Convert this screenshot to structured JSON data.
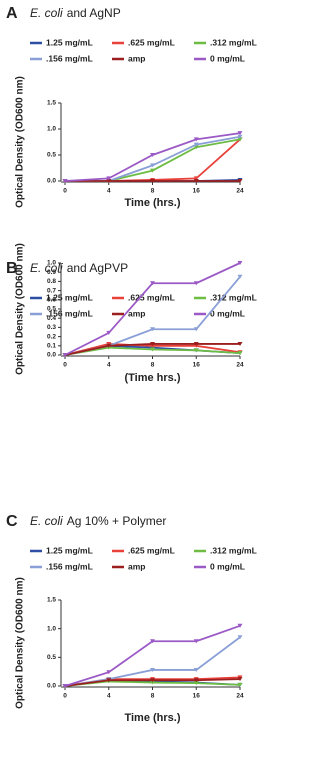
{
  "chart_data": [
    {
      "type": "line",
      "panel": "A",
      "organism": "E. coli",
      "title": "and AgNP",
      "xlabel": "Time (hrs.)",
      "ylabel": "Optical Density (OD600 nm)",
      "categories": [
        0,
        4,
        8,
        16,
        24
      ],
      "ylim": [
        0,
        1.5
      ],
      "yticks": [
        {
          "value": 0,
          "label": "0.0"
        },
        {
          "value": 0.5,
          "label": "0.5"
        },
        {
          "value": 1,
          "label": "1.0"
        },
        {
          "value": 1.5,
          "label": "1.5"
        }
      ],
      "series": [
        {
          "name": "1.25 mg/mL",
          "color": "#2e4fa3",
          "values": [
            0,
            0,
            0,
            0,
            0.02
          ]
        },
        {
          "name": ".625 mg/mL",
          "color": "#e8413a",
          "values": [
            0,
            0,
            0.02,
            0.05,
            0.8
          ]
        },
        {
          "name": ".312 mg/mL",
          "color": "#6dbd45",
          "values": [
            0,
            0,
            0.2,
            0.65,
            0.8
          ]
        },
        {
          "name": ".156 mg/mL",
          "color": "#8a9fd6",
          "values": [
            0,
            0,
            0.3,
            0.7,
            0.85
          ]
        },
        {
          "name": "amp",
          "color": "#9b1f1f",
          "values": [
            0,
            0,
            0,
            0,
            0
          ]
        },
        {
          "name": "0 mg/mL",
          "color": "#9b59c6",
          "values": [
            0,
            0.05,
            0.5,
            0.8,
            0.92
          ]
        }
      ]
    },
    {
      "type": "line",
      "panel": "B",
      "organism": "E. coli",
      "title": "and AgPVP",
      "xlabel": "(Time hrs.)",
      "ylabel": "Optical Density (OD600 nm)",
      "categories": [
        0,
        4,
        8,
        16,
        24
      ],
      "ylim": [
        0,
        1
      ],
      "yticks": [
        {
          "value": 0,
          "label": "0.0"
        },
        0.1,
        0.2,
        0.3,
        0.4,
        0.5,
        0.6,
        0.7,
        0.8,
        0.9,
        {
          "value": 1,
          "label": "1.0"
        }
      ],
      "series": [
        {
          "name": "1.25 mg/mL",
          "color": "#2e4fa3",
          "values": [
            0,
            0.1,
            0.08,
            0.05,
            0.02
          ]
        },
        {
          "name": ".625 mg/mL",
          "color": "#e8413a",
          "values": [
            0,
            0.12,
            0.1,
            0.1,
            0.03
          ]
        },
        {
          "name": ".312 mg/mL",
          "color": "#6dbd45",
          "values": [
            0,
            0.08,
            0.06,
            0.05,
            0.02
          ]
        },
        {
          "name": ".156 mg/mL",
          "color": "#8a9fd6",
          "values": [
            0,
            0.1,
            0.28,
            0.28,
            0.85
          ]
        },
        {
          "name": "amp",
          "color": "#9b1f1f",
          "values": [
            0,
            0.1,
            0.12,
            0.12,
            0.12
          ]
        },
        {
          "name": "0 mg/mL",
          "color": "#9b59c6",
          "values": [
            0,
            0.24,
            0.78,
            0.78,
            1
          ]
        }
      ]
    },
    {
      "type": "line",
      "panel": "C",
      "organism": "E. coli",
      "title": "Ag 10% + Polymer",
      "xlabel": "Time (hrs.)",
      "ylabel": "Optical Density (OD600 nm)",
      "categories": [
        0,
        4,
        8,
        16,
        24
      ],
      "ylim": [
        0,
        1.5
      ],
      "yticks": [
        {
          "value": 0,
          "label": "0.0"
        },
        {
          "value": 0.5,
          "label": "0.5"
        },
        {
          "value": 1,
          "label": "1.0"
        },
        {
          "value": 1.5,
          "label": "1.5"
        }
      ],
      "series": [
        {
          "name": "1.25 mg/mL",
          "color": "#2e4fa3",
          "values": [
            0,
            0.1,
            0.08,
            0.06,
            0.02
          ]
        },
        {
          "name": ".625 mg/mL",
          "color": "#e8413a",
          "values": [
            0,
            0.12,
            0.12,
            0.12,
            0.15
          ]
        },
        {
          "name": ".312 mg/mL",
          "color": "#6dbd45",
          "values": [
            0,
            0.08,
            0.06,
            0.05,
            0.02
          ]
        },
        {
          "name": ".156 mg/mL",
          "color": "#8a9fd6",
          "values": [
            0,
            0.12,
            0.28,
            0.28,
            0.85
          ]
        },
        {
          "name": "amp",
          "color": "#9b1f1f",
          "values": [
            0,
            0.1,
            0.1,
            0.1,
            0.12
          ]
        },
        {
          "name": "0 mg/mL",
          "color": "#9b59c6",
          "values": [
            0,
            0.24,
            0.78,
            0.78,
            1.05
          ]
        }
      ]
    }
  ]
}
